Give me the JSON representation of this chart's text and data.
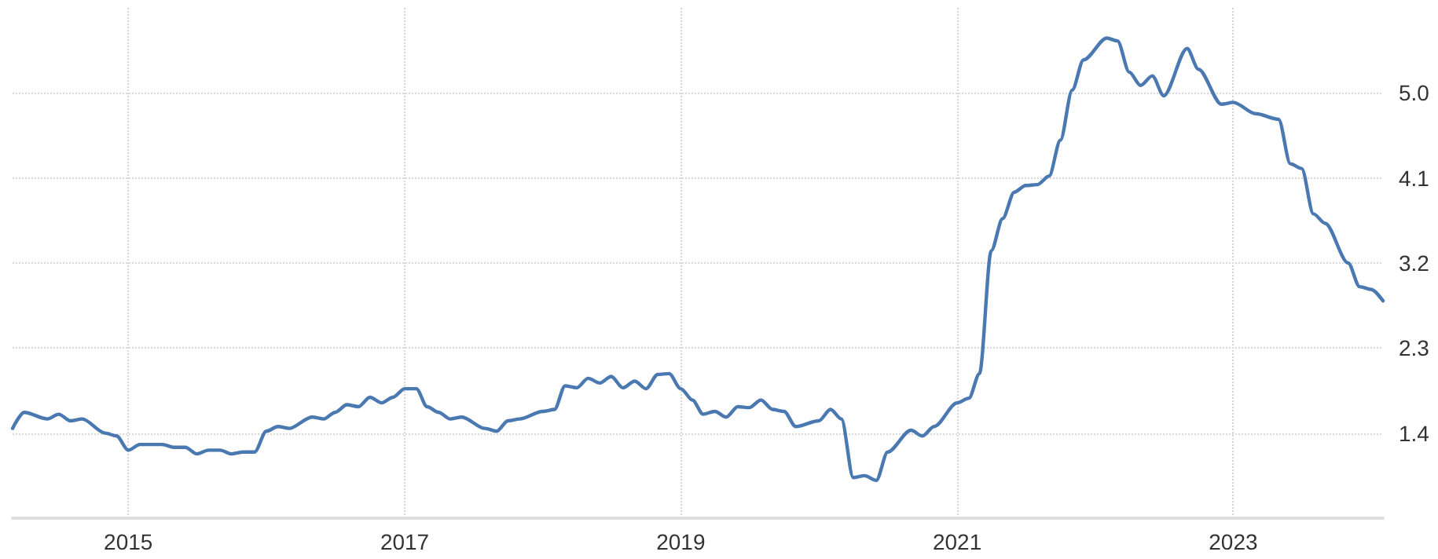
{
  "chart_data": {
    "type": "line",
    "x": [
      "2014-03",
      "2014-04",
      "2014-06",
      "2014-07",
      "2014-08",
      "2014-09",
      "2014-11",
      "2014-12",
      "2015-01",
      "2015-02",
      "2015-04",
      "2015-05",
      "2015-06",
      "2015-07",
      "2015-08",
      "2015-09",
      "2015-10",
      "2015-11",
      "2015-12",
      "2016-01",
      "2016-02",
      "2016-03",
      "2016-05",
      "2016-06",
      "2016-07",
      "2016-08",
      "2016-09",
      "2016-10",
      "2016-11",
      "2016-12",
      "2017-01",
      "2017-02",
      "2017-03",
      "2017-04",
      "2017-05",
      "2017-06",
      "2017-08",
      "2017-09",
      "2017-10",
      "2017-11",
      "2018-01",
      "2018-02",
      "2018-03",
      "2018-04",
      "2018-05",
      "2018-06",
      "2018-07",
      "2018-08",
      "2018-09",
      "2018-10",
      "2018-11",
      "2018-12",
      "2019-01",
      "2019-02",
      "2019-03",
      "2019-04",
      "2019-05",
      "2019-06",
      "2019-07",
      "2019-08",
      "2019-09",
      "2019-10",
      "2019-11",
      "2020-01",
      "2020-02",
      "2020-03",
      "2020-04",
      "2020-05",
      "2020-06",
      "2020-07",
      "2020-09",
      "2020-10",
      "2020-11",
      "2021-01",
      "2021-02",
      "2021-03",
      "2021-04",
      "2021-05",
      "2021-06",
      "2021-07",
      "2021-08",
      "2021-09",
      "2021-10",
      "2021-11",
      "2021-12",
      "2022-02",
      "2022-03",
      "2022-04",
      "2022-05",
      "2022-06",
      "2022-07",
      "2022-09",
      "2022-10",
      "2022-12",
      "2023-01",
      "2023-03",
      "2023-05",
      "2023-06",
      "2023-07",
      "2023-08",
      "2023-09",
      "2023-11",
      "2023-12",
      "2024-01",
      "2024-02"
    ],
    "series": [
      {
        "color": "#4a78b0",
        "values": [
          1.45,
          1.62,
          1.55,
          1.6,
          1.53,
          1.55,
          1.4,
          1.37,
          1.22,
          1.28,
          1.28,
          1.25,
          1.25,
          1.18,
          1.22,
          1.22,
          1.18,
          1.2,
          1.2,
          1.42,
          1.47,
          1.45,
          1.57,
          1.55,
          1.62,
          1.7,
          1.68,
          1.78,
          1.72,
          1.78,
          1.87,
          1.87,
          1.68,
          1.62,
          1.55,
          1.57,
          1.45,
          1.42,
          1.53,
          1.55,
          1.63,
          1.65,
          1.9,
          1.88,
          1.98,
          1.93,
          2.0,
          1.88,
          1.95,
          1.87,
          2.02,
          2.03,
          1.87,
          1.75,
          1.6,
          1.63,
          1.57,
          1.68,
          1.67,
          1.75,
          1.65,
          1.63,
          1.47,
          1.53,
          1.65,
          1.55,
          0.93,
          0.95,
          0.9,
          1.2,
          1.43,
          1.37,
          1.47,
          1.72,
          1.77,
          2.03,
          3.33,
          3.67,
          3.95,
          4.02,
          4.03,
          4.12,
          4.5,
          5.03,
          5.35,
          5.58,
          5.55,
          5.22,
          5.08,
          5.18,
          4.97,
          5.47,
          5.25,
          4.88,
          4.9,
          4.78,
          4.72,
          4.25,
          4.2,
          3.72,
          3.62,
          3.2,
          2.95,
          2.92,
          2.8
        ]
      }
    ],
    "xlim": [
      "2014-03",
      "2024-02"
    ],
    "xticks": [
      "2015",
      "2017",
      "2019",
      "2021",
      "2023"
    ],
    "ylim": [
      0.5,
      5.9
    ],
    "yticks": [
      1.4,
      2.3,
      3.2,
      4.1,
      {
        "value": 5,
        "label": "5.0"
      }
    ],
    "grid": true,
    "marker": "none",
    "line_style": "solid"
  }
}
